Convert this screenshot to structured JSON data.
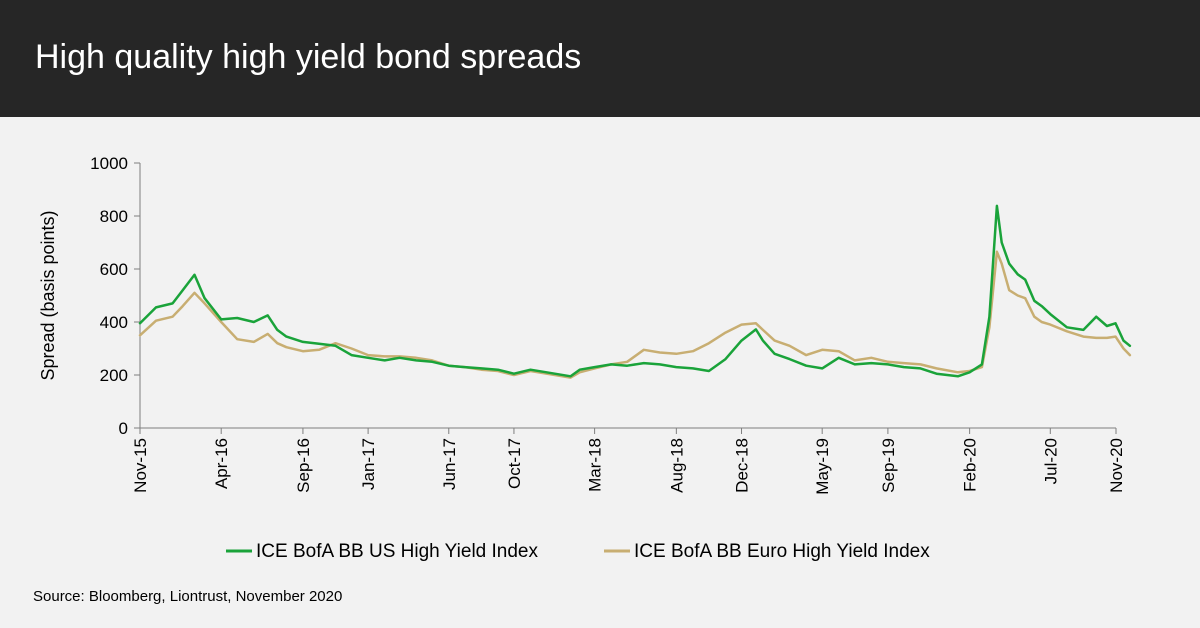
{
  "header": {
    "title": "High quality high yield bond spreads"
  },
  "source_note": "Source: Bloomberg, Liontrust, November 2020",
  "colors": {
    "header_bg": "#262626",
    "background": "#f2f2f2",
    "us_series": "#1aa33a",
    "euro_series": "#c8ae72"
  },
  "chart_data": {
    "type": "line",
    "title": "",
    "xlabel": "",
    "ylabel": "Spread (basis points)",
    "ylim": [
      0,
      1000
    ],
    "yticks": [
      0,
      200,
      400,
      600,
      800,
      1000
    ],
    "xlim": [
      "2015-11-01",
      "2020-11-01"
    ],
    "xticks": [
      {
        "date": "2015-11-01",
        "label": "Nov-15"
      },
      {
        "date": "2016-04-01",
        "label": "Apr-16"
      },
      {
        "date": "2016-09-01",
        "label": "Sep-16"
      },
      {
        "date": "2017-01-01",
        "label": "Jan-17"
      },
      {
        "date": "2017-06-01",
        "label": "Jun-17"
      },
      {
        "date": "2017-10-01",
        "label": "Oct-17"
      },
      {
        "date": "2018-03-01",
        "label": "Mar-18"
      },
      {
        "date": "2018-08-01",
        "label": "Aug-18"
      },
      {
        "date": "2018-12-01",
        "label": "Dec-18"
      },
      {
        "date": "2019-05-01",
        "label": "May-19"
      },
      {
        "date": "2019-09-01",
        "label": "Sep-19"
      },
      {
        "date": "2020-02-01",
        "label": "Feb-20"
      },
      {
        "date": "2020-07-01",
        "label": "Jul-20"
      },
      {
        "date": "2020-11-01",
        "label": "Nov-20"
      }
    ],
    "grid": false,
    "legend_position": "bottom",
    "series": [
      {
        "name": "ICE BofA BB US High Yield Index",
        "color": "#1aa33a",
        "points": [
          [
            "2015-11-01",
            395
          ],
          [
            "2015-12-01",
            455
          ],
          [
            "2016-01-01",
            470
          ],
          [
            "2016-01-20",
            520
          ],
          [
            "2016-02-11",
            578
          ],
          [
            "2016-03-01",
            490
          ],
          [
            "2016-04-01",
            410
          ],
          [
            "2016-05-01",
            415
          ],
          [
            "2016-06-01",
            400
          ],
          [
            "2016-06-27",
            425
          ],
          [
            "2016-07-15",
            370
          ],
          [
            "2016-08-01",
            345
          ],
          [
            "2016-09-01",
            325
          ],
          [
            "2016-10-01",
            318
          ],
          [
            "2016-11-01",
            310
          ],
          [
            "2016-12-01",
            275
          ],
          [
            "2017-01-01",
            265
          ],
          [
            "2017-02-01",
            255
          ],
          [
            "2017-03-01",
            265
          ],
          [
            "2017-04-01",
            255
          ],
          [
            "2017-05-01",
            250
          ],
          [
            "2017-06-01",
            235
          ],
          [
            "2017-07-01",
            230
          ],
          [
            "2017-08-01",
            225
          ],
          [
            "2017-09-01",
            220
          ],
          [
            "2017-10-01",
            205
          ],
          [
            "2017-11-01",
            220
          ],
          [
            "2017-12-01",
            210
          ],
          [
            "2018-01-15",
            195
          ],
          [
            "2018-02-01",
            220
          ],
          [
            "2018-03-01",
            230
          ],
          [
            "2018-04-01",
            240
          ],
          [
            "2018-05-01",
            235
          ],
          [
            "2018-06-01",
            245
          ],
          [
            "2018-07-01",
            240
          ],
          [
            "2018-08-01",
            230
          ],
          [
            "2018-09-01",
            225
          ],
          [
            "2018-10-01",
            215
          ],
          [
            "2018-11-01",
            260
          ],
          [
            "2018-12-01",
            330
          ],
          [
            "2018-12-28",
            372
          ],
          [
            "2019-01-10",
            330
          ],
          [
            "2019-02-01",
            280
          ],
          [
            "2019-03-01",
            260
          ],
          [
            "2019-04-01",
            235
          ],
          [
            "2019-05-01",
            225
          ],
          [
            "2019-06-01",
            265
          ],
          [
            "2019-07-01",
            240
          ],
          [
            "2019-08-01",
            245
          ],
          [
            "2019-09-01",
            240
          ],
          [
            "2019-10-01",
            230
          ],
          [
            "2019-11-01",
            225
          ],
          [
            "2019-12-01",
            205
          ],
          [
            "2020-01-10",
            195
          ],
          [
            "2020-02-01",
            210
          ],
          [
            "2020-02-24",
            240
          ],
          [
            "2020-03-09",
            420
          ],
          [
            "2020-03-23",
            838
          ],
          [
            "2020-04-01",
            700
          ],
          [
            "2020-04-15",
            620
          ],
          [
            "2020-05-01",
            580
          ],
          [
            "2020-05-15",
            560
          ],
          [
            "2020-06-01",
            480
          ],
          [
            "2020-06-15",
            460
          ],
          [
            "2020-07-01",
            430
          ],
          [
            "2020-08-01",
            380
          ],
          [
            "2020-09-01",
            370
          ],
          [
            "2020-09-25",
            420
          ],
          [
            "2020-10-15",
            385
          ],
          [
            "2020-10-31",
            395
          ],
          [
            "2020-11-15",
            330
          ],
          [
            "2020-11-27",
            310
          ]
        ]
      },
      {
        "name": "ICE BofA BB Euro High Yield Index",
        "color": "#c8ae72",
        "points": [
          [
            "2015-11-01",
            350
          ],
          [
            "2015-12-01",
            405
          ],
          [
            "2016-01-01",
            420
          ],
          [
            "2016-01-20",
            460
          ],
          [
            "2016-02-11",
            510
          ],
          [
            "2016-03-01",
            470
          ],
          [
            "2016-04-01",
            400
          ],
          [
            "2016-05-01",
            335
          ],
          [
            "2016-06-01",
            325
          ],
          [
            "2016-06-27",
            355
          ],
          [
            "2016-07-15",
            320
          ],
          [
            "2016-08-01",
            305
          ],
          [
            "2016-09-01",
            290
          ],
          [
            "2016-10-01",
            295
          ],
          [
            "2016-11-01",
            320
          ],
          [
            "2016-12-01",
            300
          ],
          [
            "2017-01-01",
            275
          ],
          [
            "2017-02-01",
            270
          ],
          [
            "2017-03-01",
            270
          ],
          [
            "2017-04-01",
            265
          ],
          [
            "2017-05-01",
            255
          ],
          [
            "2017-06-01",
            235
          ],
          [
            "2017-07-01",
            230
          ],
          [
            "2017-08-01",
            220
          ],
          [
            "2017-09-01",
            215
          ],
          [
            "2017-10-01",
            200
          ],
          [
            "2017-11-01",
            215
          ],
          [
            "2017-12-01",
            205
          ],
          [
            "2018-01-15",
            190
          ],
          [
            "2018-02-01",
            210
          ],
          [
            "2018-03-01",
            225
          ],
          [
            "2018-04-01",
            240
          ],
          [
            "2018-05-01",
            250
          ],
          [
            "2018-06-01",
            295
          ],
          [
            "2018-07-01",
            285
          ],
          [
            "2018-08-01",
            280
          ],
          [
            "2018-09-01",
            290
          ],
          [
            "2018-10-01",
            320
          ],
          [
            "2018-11-01",
            360
          ],
          [
            "2018-12-01",
            390
          ],
          [
            "2018-12-28",
            395
          ],
          [
            "2019-01-10",
            370
          ],
          [
            "2019-02-01",
            330
          ],
          [
            "2019-03-01",
            310
          ],
          [
            "2019-04-01",
            275
          ],
          [
            "2019-05-01",
            295
          ],
          [
            "2019-06-01",
            290
          ],
          [
            "2019-07-01",
            255
          ],
          [
            "2019-08-01",
            265
          ],
          [
            "2019-09-01",
            250
          ],
          [
            "2019-10-01",
            245
          ],
          [
            "2019-11-01",
            240
          ],
          [
            "2019-12-01",
            225
          ],
          [
            "2020-01-10",
            210
          ],
          [
            "2020-02-01",
            215
          ],
          [
            "2020-02-24",
            230
          ],
          [
            "2020-03-09",
            380
          ],
          [
            "2020-03-23",
            665
          ],
          [
            "2020-04-01",
            620
          ],
          [
            "2020-04-15",
            520
          ],
          [
            "2020-05-01",
            500
          ],
          [
            "2020-05-15",
            490
          ],
          [
            "2020-06-01",
            420
          ],
          [
            "2020-06-15",
            400
          ],
          [
            "2020-07-01",
            390
          ],
          [
            "2020-08-01",
            365
          ],
          [
            "2020-09-01",
            345
          ],
          [
            "2020-09-25",
            340
          ],
          [
            "2020-10-15",
            340
          ],
          [
            "2020-10-31",
            345
          ],
          [
            "2020-11-15",
            300
          ],
          [
            "2020-11-27",
            275
          ]
        ]
      }
    ]
  }
}
